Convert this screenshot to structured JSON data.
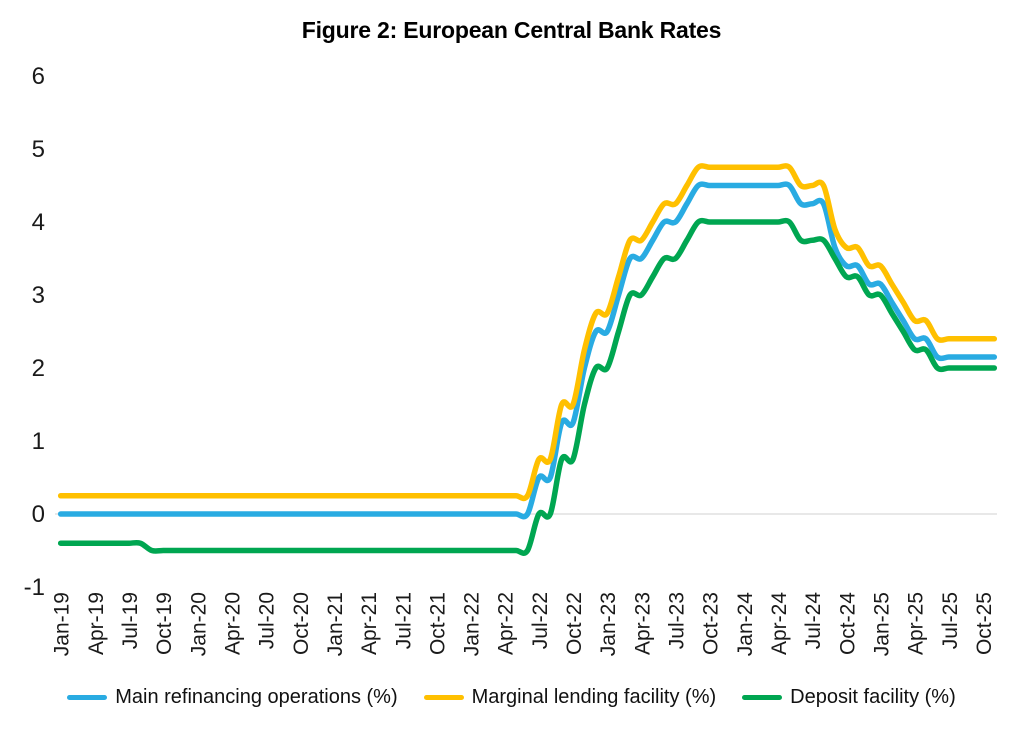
{
  "title": "Figure 2: European Central Bank Rates",
  "chart_data": {
    "type": "line",
    "title": "Figure 2: European Central Bank Rates",
    "x_start": "Jan-19",
    "x_end": "Nov-25",
    "frequency": "monthly",
    "smoothed": true,
    "grid": "zero-line-only",
    "legend_position": "bottom",
    "ylim": [
      -1,
      6
    ],
    "y_ticks": [
      "6",
      "5",
      "4",
      "3",
      "2",
      "1",
      "0",
      "-1"
    ],
    "x_tick_labels": [
      "Jan-19",
      "Apr-19",
      "Jul-19",
      "Oct-19",
      "Jan-20",
      "Apr-20",
      "Jul-20",
      "Oct-20",
      "Jan-21",
      "Apr-21",
      "Jul-21",
      "Oct-21",
      "Jan-22",
      "Apr-22",
      "Jul-22",
      "Oct-22",
      "Jan-23",
      "Apr-23",
      "Jul-23",
      "Oct-23",
      "Jan-24",
      "Apr-24",
      "Jul-24",
      "Oct-24",
      "Jan-25",
      "Apr-25",
      "Jul-25",
      "Oct-25"
    ],
    "x_ticks_every_n_points": 3,
    "series": [
      {
        "name": "Main refinancing operations (%)",
        "color": "#29ABE2",
        "values": [
          0,
          0,
          0,
          0,
          0,
          0,
          0,
          0,
          0,
          0,
          0,
          0,
          0,
          0,
          0,
          0,
          0,
          0,
          0,
          0,
          0,
          0,
          0,
          0,
          0,
          0,
          0,
          0,
          0,
          0,
          0,
          0,
          0,
          0,
          0,
          0,
          0,
          0,
          0,
          0,
          0,
          0,
          0.5,
          0.5,
          1.25,
          1.25,
          2,
          2.5,
          2.5,
          3,
          3.5,
          3.5,
          3.75,
          4,
          4,
          4.25,
          4.5,
          4.5,
          4.5,
          4.5,
          4.5,
          4.5,
          4.5,
          4.5,
          4.5,
          4.25,
          4.25,
          4.25,
          3.65,
          3.4,
          3.4,
          3.15,
          3.15,
          2.9,
          2.65,
          2.4,
          2.4,
          2.15,
          2.15,
          2.15,
          2.15,
          2.15,
          2.15
        ]
      },
      {
        "name": "Marginal lending facility (%)",
        "color": "#FFC000",
        "values": [
          0.25,
          0.25,
          0.25,
          0.25,
          0.25,
          0.25,
          0.25,
          0.25,
          0.25,
          0.25,
          0.25,
          0.25,
          0.25,
          0.25,
          0.25,
          0.25,
          0.25,
          0.25,
          0.25,
          0.25,
          0.25,
          0.25,
          0.25,
          0.25,
          0.25,
          0.25,
          0.25,
          0.25,
          0.25,
          0.25,
          0.25,
          0.25,
          0.25,
          0.25,
          0.25,
          0.25,
          0.25,
          0.25,
          0.25,
          0.25,
          0.25,
          0.25,
          0.75,
          0.75,
          1.5,
          1.5,
          2.25,
          2.75,
          2.75,
          3.25,
          3.75,
          3.75,
          4,
          4.25,
          4.25,
          4.5,
          4.75,
          4.75,
          4.75,
          4.75,
          4.75,
          4.75,
          4.75,
          4.75,
          4.75,
          4.5,
          4.5,
          4.5,
          3.9,
          3.65,
          3.65,
          3.4,
          3.4,
          3.15,
          2.9,
          2.65,
          2.65,
          2.4,
          2.4,
          2.4,
          2.4,
          2.4,
          2.4
        ]
      },
      {
        "name": "Deposit facility (%)",
        "color": "#00A651",
        "values": [
          -0.4,
          -0.4,
          -0.4,
          -0.4,
          -0.4,
          -0.4,
          -0.4,
          -0.4,
          -0.5,
          -0.5,
          -0.5,
          -0.5,
          -0.5,
          -0.5,
          -0.5,
          -0.5,
          -0.5,
          -0.5,
          -0.5,
          -0.5,
          -0.5,
          -0.5,
          -0.5,
          -0.5,
          -0.5,
          -0.5,
          -0.5,
          -0.5,
          -0.5,
          -0.5,
          -0.5,
          -0.5,
          -0.5,
          -0.5,
          -0.5,
          -0.5,
          -0.5,
          -0.5,
          -0.5,
          -0.5,
          -0.5,
          -0.5,
          0,
          0,
          0.75,
          0.75,
          1.5,
          2,
          2,
          2.5,
          3,
          3,
          3.25,
          3.5,
          3.5,
          3.75,
          4,
          4,
          4,
          4,
          4,
          4,
          4,
          4,
          4,
          3.75,
          3.75,
          3.75,
          3.5,
          3.25,
          3.25,
          3,
          3,
          2.75,
          2.5,
          2.25,
          2.25,
          2,
          2,
          2,
          2,
          2,
          2
        ]
      }
    ],
    "zero_gridline_color": "#D9D9D9"
  }
}
